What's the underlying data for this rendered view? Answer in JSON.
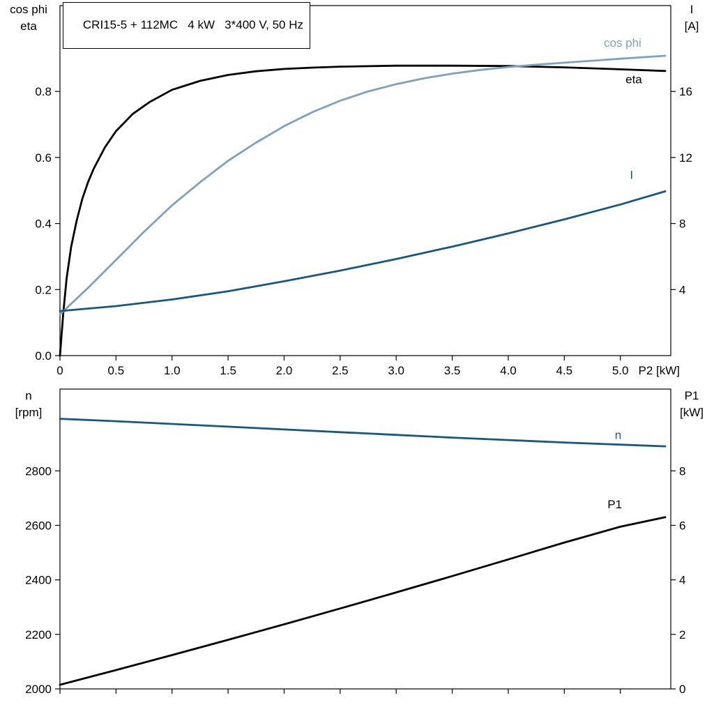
{
  "chart_data": [
    {
      "type": "line",
      "title": "CRI15-5 + 112MC   4 kW   3*400 V, 50 Hz",
      "x": {
        "lim": [
          0,
          5.45
        ],
        "tick_values": [
          0,
          0.5,
          1,
          1.5,
          2,
          2.5,
          3,
          3.5,
          4,
          4.5,
          5
        ],
        "tick_labels": [
          "0",
          "0.5",
          "1.0",
          "1.5",
          "2.0",
          "2.5",
          "3.0",
          "3.5",
          "4.0",
          "4.5",
          "5.0"
        ],
        "end_label": "P2 [kW]"
      },
      "left_axis": {
        "title_lines": [
          "cos phi",
          "eta"
        ],
        "lim": [
          0,
          1.06
        ],
        "tick_values": [
          0,
          0.2,
          0.4,
          0.6,
          0.8
        ],
        "tick_labels": [
          "0.0",
          "0.2",
          "0.4",
          "0.6",
          "0.8"
        ]
      },
      "right_axis": {
        "title_lines": [
          "I",
          "[A]"
        ],
        "lim": [
          0,
          21.2
        ],
        "tick_values": [
          4,
          8,
          12,
          16
        ],
        "tick_labels": [
          "4",
          "8",
          "12",
          "16"
        ]
      },
      "series": [
        {
          "name": "eta",
          "axis": "left",
          "color": "#000000",
          "x": [
            0,
            0.03,
            0.06,
            0.1,
            0.15,
            0.2,
            0.25,
            0.3,
            0.4,
            0.5,
            0.65,
            0.8,
            1.0,
            1.25,
            1.5,
            1.75,
            2.0,
            2.25,
            2.5,
            3.0,
            3.5,
            4.0,
            4.5,
            5.0,
            5.4
          ],
          "y": [
            0,
            0.13,
            0.235,
            0.33,
            0.41,
            0.475,
            0.525,
            0.565,
            0.63,
            0.68,
            0.732,
            0.768,
            0.805,
            0.832,
            0.85,
            0.861,
            0.868,
            0.872,
            0.875,
            0.878,
            0.878,
            0.877,
            0.873,
            0.867,
            0.862
          ],
          "label": {
            "text": "eta",
            "x": 5.12,
            "y": 0.825
          }
        },
        {
          "name": "cos_phi",
          "axis": "left",
          "color": "#7fa1bf",
          "x": [
            0,
            0.25,
            0.5,
            0.75,
            1.0,
            1.25,
            1.5,
            1.75,
            2.0,
            2.25,
            2.5,
            2.75,
            3.0,
            3.25,
            3.5,
            3.75,
            4.0,
            4.25,
            4.5,
            4.75,
            5.0,
            5.4
          ],
          "y": [
            0.125,
            0.205,
            0.29,
            0.375,
            0.455,
            0.525,
            0.59,
            0.645,
            0.695,
            0.737,
            0.772,
            0.8,
            0.822,
            0.84,
            0.854,
            0.865,
            0.874,
            0.881,
            0.887,
            0.893,
            0.899,
            0.908
          ],
          "label": {
            "text": "cos phi",
            "x": 5.02,
            "y": 0.935
          }
        },
        {
          "name": "I",
          "axis": "right",
          "color": "#175782",
          "x": [
            0,
            0.5,
            1.0,
            1.5,
            2.0,
            2.5,
            3.0,
            3.5,
            4.0,
            4.5,
            5.0,
            5.4
          ],
          "y": [
            2.7,
            3.0,
            3.4,
            3.9,
            4.5,
            5.15,
            5.85,
            6.6,
            7.4,
            8.25,
            9.15,
            9.95
          ],
          "label": {
            "text": "I",
            "x": 5.1,
            "y": 10.7
          }
        }
      ]
    },
    {
      "type": "line",
      "x": {
        "lim": [
          0,
          5.45
        ],
        "tick_values": [
          0,
          0.5,
          1,
          1.5,
          2,
          2.5,
          3,
          3.5,
          4,
          4.5,
          5
        ],
        "tick_labels": null
      },
      "left_axis": {
        "title_lines": [
          "n",
          "[rpm]"
        ],
        "lim": [
          2000,
          3100
        ],
        "tick_values": [
          2000,
          2200,
          2400,
          2600,
          2800
        ],
        "tick_labels": [
          "2000",
          "2200",
          "2400",
          "2600",
          "2800"
        ]
      },
      "right_axis": {
        "title_lines": [
          "P1",
          "[kW]"
        ],
        "lim": [
          0,
          11
        ],
        "tick_values": [
          0,
          2,
          4,
          6,
          8
        ],
        "tick_labels": [
          "0",
          "2",
          "4",
          "6",
          "8"
        ]
      },
      "series": [
        {
          "name": "n",
          "axis": "left",
          "color": "#175782",
          "x": [
            0,
            0.5,
            1,
            1.5,
            2,
            2.5,
            3,
            3.5,
            4,
            4.5,
            5,
            5.4
          ],
          "y": [
            2991,
            2982,
            2972,
            2962,
            2952,
            2942,
            2932,
            2922,
            2913,
            2904,
            2896,
            2890
          ],
          "label": {
            "text": "n",
            "x": 4.98,
            "y": 2917
          }
        },
        {
          "name": "P1",
          "axis": "right",
          "color": "#000000",
          "x": [
            0,
            0.5,
            1,
            1.5,
            2,
            2.5,
            3,
            3.5,
            4,
            4.5,
            5,
            5.4
          ],
          "y": [
            0.15,
            0.69,
            1.24,
            1.8,
            2.37,
            2.95,
            3.54,
            4.14,
            4.75,
            5.37,
            5.95,
            6.3
          ],
          "label": {
            "text": "P1",
            "x": 4.95,
            "y": 6.62
          }
        }
      ]
    }
  ]
}
